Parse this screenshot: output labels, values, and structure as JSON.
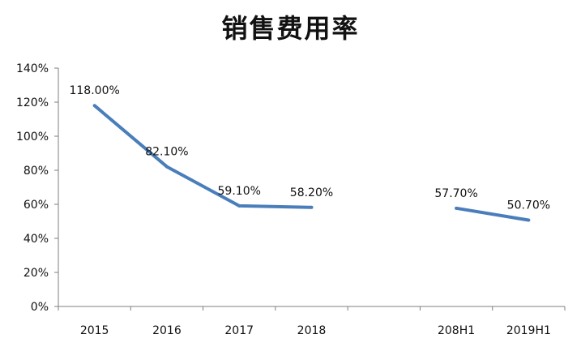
{
  "chart_data": {
    "type": "line",
    "title": "销售费用率",
    "categories": [
      "2015",
      "2016",
      "2017",
      "2018",
      "",
      "208H1",
      "2019H1"
    ],
    "series": [
      {
        "values": [
          118.0,
          82.1,
          59.1,
          58.2,
          null,
          57.7,
          50.7
        ],
        "labels": [
          "118.00%",
          "82.10%",
          "59.10%",
          "58.20%",
          "",
          "57.70%",
          "50.70%"
        ],
        "color": "#4a7ebb"
      }
    ],
    "y_ticks": [
      "0%",
      "20%",
      "40%",
      "60%",
      "80%",
      "100%",
      "120%",
      "140%"
    ],
    "ylim": [
      0,
      140
    ],
    "grid": false,
    "legend": "none"
  }
}
